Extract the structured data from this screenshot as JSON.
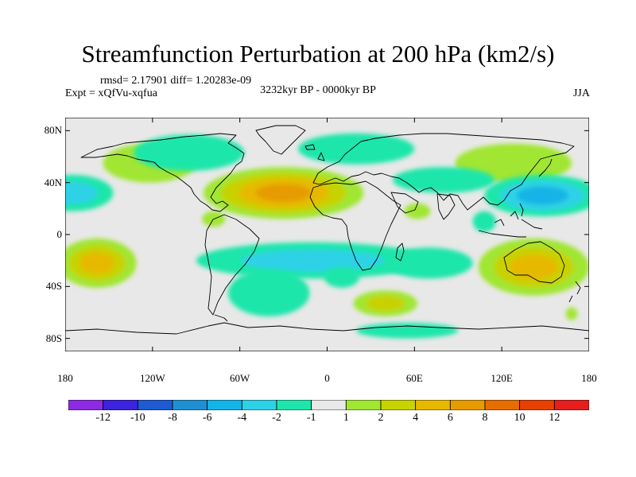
{
  "title": "Streamfunction Perturbation at 200 hPa (km2/s)",
  "stats_text": "rmsd= 2.17901 diff= 1.20283e-09",
  "experiment_text": "Expt = xQfVu-xqfua",
  "period_text": "3232kyr BP - 0000kyr BP",
  "season": "JJA",
  "map": {
    "lon_range": [
      -180,
      180
    ],
    "lat_range": [
      -90,
      90
    ],
    "y_ticks": [
      {
        "label": "80N",
        "lat": 80
      },
      {
        "label": "40N",
        "lat": 40
      },
      {
        "label": "0",
        "lat": 0
      },
      {
        "label": "40S",
        "lat": -40
      },
      {
        "label": "80S",
        "lat": -80
      }
    ],
    "x_ticks": [
      {
        "label": "180",
        "lon": -180
      },
      {
        "label": "120W",
        "lon": -120
      },
      {
        "label": "60W",
        "lon": -60
      },
      {
        "label": "0",
        "lon": 0
      },
      {
        "label": "60E",
        "lon": 60
      },
      {
        "label": "120E",
        "lon": 120
      },
      {
        "label": "180",
        "lon": 180
      }
    ],
    "background_color": "#e8e8e8",
    "anomalies": [
      {
        "name": "central-pacific-high-nh",
        "lon": -122,
        "lat": 55,
        "rx": 32,
        "ry": 15,
        "sign": 1,
        "levels": 1
      },
      {
        "name": "atlantic-africa-high",
        "lon": -30,
        "lat": 32,
        "rx": 55,
        "ry": 20,
        "sign": 1,
        "levels": 4
      },
      {
        "name": "north-pacific-west-high",
        "lon": 128,
        "lat": 55,
        "rx": 40,
        "ry": 15,
        "sign": 1,
        "levels": 1
      },
      {
        "name": "arabian-sea-high",
        "lon": 62,
        "lat": 18,
        "rx": 9,
        "ry": 6,
        "sign": 1,
        "levels": 1
      },
      {
        "name": "caribbean-high",
        "lon": -78,
        "lat": 12,
        "rx": 8,
        "ry": 6,
        "sign": 1,
        "levels": 1
      },
      {
        "name": "south-pacific-high",
        "lon": -158,
        "lat": -22,
        "rx": 27,
        "ry": 19,
        "sign": 1,
        "levels": 3
      },
      {
        "name": "australia-high",
        "lon": 142,
        "lat": -25,
        "rx": 38,
        "ry": 22,
        "sign": 1,
        "levels": 3
      },
      {
        "name": "indian-ocean-south-high",
        "lon": 40,
        "lat": -53,
        "rx": 22,
        "ry": 10,
        "sign": 1,
        "levels": 2
      },
      {
        "name": "tasman-small-high",
        "lon": 168,
        "lat": -61,
        "rx": 4,
        "ry": 5,
        "sign": 1,
        "levels": 1
      },
      {
        "name": "pacific-jet-low",
        "lon": -175,
        "lat": 32,
        "rx": 28,
        "ry": 14,
        "sign": -1,
        "levels": 2
      },
      {
        "name": "canada-low",
        "lon": -95,
        "lat": 63,
        "rx": 38,
        "ry": 14,
        "sign": -1,
        "levels": 1
      },
      {
        "name": "north-atlantic-europe-low",
        "lon": 20,
        "lat": 66,
        "rx": 40,
        "ry": 12,
        "sign": -1,
        "levels": 1
      },
      {
        "name": "middle-east-low",
        "lon": 80,
        "lat": 42,
        "rx": 35,
        "ry": 10,
        "sign": -1,
        "levels": 1
      },
      {
        "name": "east-asia-pacific-low",
        "lon": 148,
        "lat": 30,
        "rx": 40,
        "ry": 16,
        "sign": -1,
        "levels": 3
      },
      {
        "name": "atlantic-south-low",
        "lon": -10,
        "lat": -20,
        "rx": 80,
        "ry": 14,
        "sign": -1,
        "levels": 2
      },
      {
        "name": "south-atlantic-low",
        "lon": -40,
        "lat": -45,
        "rx": 28,
        "ry": 18,
        "sign": -1,
        "levels": 1
      },
      {
        "name": "indian-southwest-low",
        "lon": 70,
        "lat": -22,
        "rx": 30,
        "ry": 12,
        "sign": -1,
        "levels": 1
      },
      {
        "name": "antarctic-low",
        "lon": 55,
        "lat": -74,
        "rx": 35,
        "ry": 6,
        "sign": -1,
        "levels": 1
      },
      {
        "name": "africa-south-low",
        "lon": 10,
        "lat": -33,
        "rx": 12,
        "ry": 8,
        "sign": -1,
        "levels": 1
      },
      {
        "name": "west-pacific-low",
        "lon": 108,
        "lat": 10,
        "rx": 8,
        "ry": 8,
        "sign": -1,
        "levels": 1
      }
    ]
  },
  "colorbar": {
    "colors": [
      "#8d2be2",
      "#3c23de",
      "#1e5ad2",
      "#1e90d2",
      "#14b4e6",
      "#2dd2e6",
      "#1ee6aa",
      "#e8e8e8",
      "#a0e632",
      "#c8d200",
      "#e6b900",
      "#e69b00",
      "#e66e00",
      "#e64100",
      "#e61e1e"
    ],
    "labels": [
      "-12",
      "-10",
      "-8",
      "-6",
      "-4",
      "-2",
      "-1",
      "1",
      "2",
      "4",
      "6",
      "8",
      "10",
      "12"
    ]
  }
}
